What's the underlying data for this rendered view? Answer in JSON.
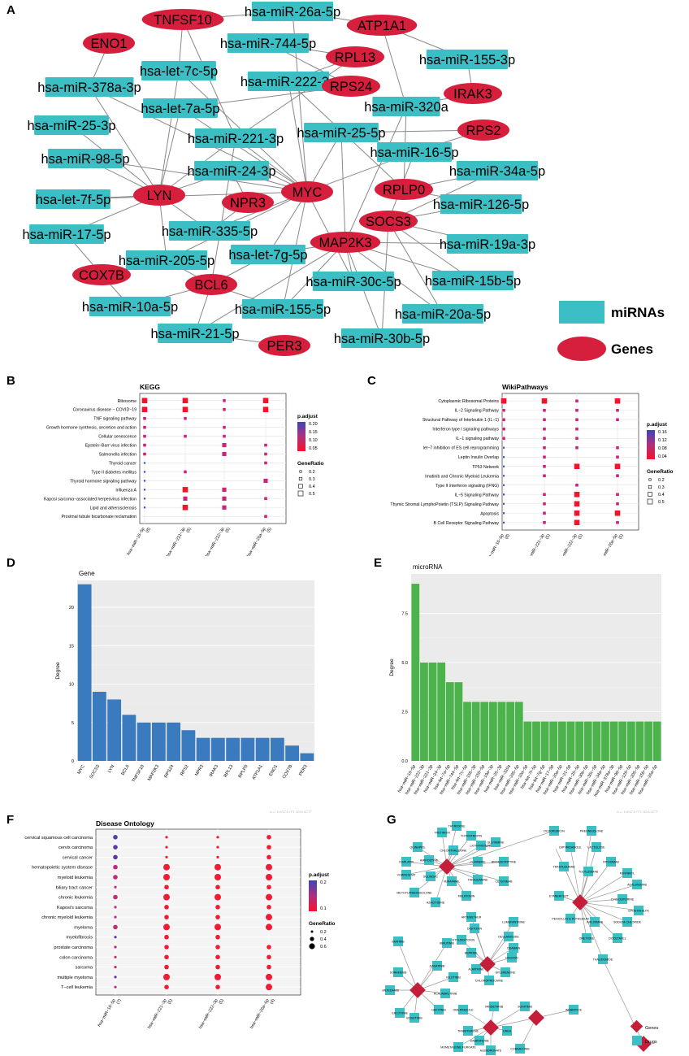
{
  "panels": {
    "A": "A",
    "B": "B",
    "C": "C",
    "D": "D",
    "E": "E",
    "F": "F",
    "G": "G"
  },
  "network_a": {
    "legend": {
      "mirnas": "miRNAs",
      "genes": "Genes"
    },
    "colors": {
      "mirna": "#3bbfc4",
      "gene": "#d61f3d",
      "edge": "#888888"
    },
    "mirnas": [
      "hsa-miR-26a-5p",
      "hsa-miR-744-5p",
      "hsa-let-7c-5p",
      "hsa-miR-222-3p",
      "hsa-miR-155-3p",
      "hsa-miR-378a-3p",
      "hsa-let-7a-5p",
      "hsa-miR-320a",
      "hsa-miR-25-3p",
      "hsa-miR-221-3p",
      "hsa-miR-25-5p",
      "hsa-miR-16-5p",
      "hsa-miR-98-5p",
      "hsa-miR-24-3p",
      "hsa-miR-34a-5p",
      "hsa-let-7f-5p",
      "hsa-miR-126-5p",
      "hsa-miR-17-5p",
      "hsa-miR-335-5p",
      "hsa-miR-205-5p",
      "hsa-let-7g-5p",
      "hsa-miR-19a-3p",
      "hsa-miR-30c-5p",
      "hsa-miR-15b-5p",
      "hsa-miR-10a-5p",
      "hsa-miR-155-5p",
      "hsa-miR-20a-5p",
      "hsa-miR-21-5p",
      "hsa-miR-30b-5p"
    ],
    "genes": [
      "TNFSF10",
      "ATP1A1",
      "ENO1",
      "RPL13",
      "RPS24",
      "IRAK3",
      "RPS2",
      "MYC",
      "LYN",
      "NPR3",
      "RPLP0",
      "SOCS3",
      "MAP2K3",
      "COX7B",
      "BCL6",
      "PER3"
    ]
  },
  "kegg": {
    "title": "KEGG",
    "terms": [
      "Ribosome",
      "Coronavirus disease − COVID−19",
      "TNF signaling pathway",
      "Growth hormone synthesis, secretion and action",
      "Cellular senescence",
      "Epstein−Barr virus infection",
      "Salmonella infection",
      "Thyroid cancer",
      "Type II diabetes mellitus",
      "Thyroid hormone signaling pathway",
      "Influenza A",
      "Kaposi sarcoma−associated herpesvirus infection",
      "Lipid and atherosclerosis",
      "Proximal tubule bicarbonate reclamation"
    ],
    "groups": [
      "hsa−miR−16−5p\n(8)",
      "hsa−miR−221−3p\n(5)",
      "hsa−miR−222−3p\n(5)",
      "hsa−miR−26a−5p\n(5)"
    ],
    "legend_color_title": "p.adjust",
    "legend_color_ticks": [
      "0.20",
      "0.15",
      "0.10",
      "0.05"
    ],
    "legend_size_title": "GeneRatio",
    "legend_size_ticks": [
      "0.2",
      "0.3",
      "0.4",
      "0.5"
    ]
  },
  "wiki": {
    "title": "WikiPathways",
    "terms": [
      "Cytoplasmic Ribosomal Proteins",
      "IL−2 Signaling Pathway",
      "Structural Pathway of Interleukin 1 (IL−1)",
      "Interferon type I signaling pathways",
      "IL−1 signaling pathway",
      "let−7 inhibition of ES cell reprogramming",
      "Leptin Insulin Overlap",
      "TP53 Network",
      "Imatinib and Chronic Myeloid Leukemia",
      "Type II interferon signaling (IFNG)",
      "IL−5 Signaling Pathway",
      "Thymic Stromal LymphoPoietin (TSLP) Signaling Pathway",
      "Apoptosis",
      "B Cell Receptor Signaling Pathway"
    ],
    "groups": [
      "hsa−miR−16−5p\n(8)",
      "hsa−miR−221−3p\n(5)",
      "hsa−miR−222−3p\n(5)",
      "hsa−miR−26a−5p\n(5)"
    ],
    "legend_color_title": "p.adjust",
    "legend_color_ticks": [
      "0.16",
      "0.12",
      "0.08",
      "0.04"
    ],
    "legend_size_title": "GeneRatio",
    "legend_size_ticks": [
      "0.2",
      "0.3",
      "0.4",
      "0.5"
    ]
  },
  "disease": {
    "title": "Disease Ontology",
    "terms": [
      "cervical squamous cell carcinoma",
      "cervix carcinoma",
      "cervical cancer",
      "hematopoietic system disease",
      "myeloid leukemia",
      "biliary tract cancer",
      "chronic leukemia",
      "Kaposi's sarcoma",
      "chronic myeloid leukemia",
      "myeloma",
      "myelofibrosis",
      "prostate carcinoma",
      "colon carcinoma",
      "sarcoma",
      "multiple myeloma",
      "T−cell leukemia"
    ],
    "groups": [
      "hsa−miR−16−5p\n(7)",
      "hsa−miR−221−3p\n(5)",
      "hsa−miR−222−3p\n(5)",
      "hsa−miR−26a−5p\n(4)"
    ],
    "legend_color_title": "p.adjust",
    "legend_color_ticks": [
      "0.2",
      "0.1"
    ],
    "legend_size_title": "GeneRatio",
    "legend_size_ticks": [
      "0.2",
      "0.4",
      "0.6"
    ]
  },
  "chart_data": [
    {
      "type": "bar",
      "title": "Gene",
      "xlabel": "",
      "ylabel": "Degree",
      "ylim": [
        0,
        23.5
      ],
      "yticks": [
        "0",
        "5",
        "10",
        "15",
        "20"
      ],
      "color": "#3a7bbf",
      "categories": [
        "MYC",
        "SOCS3",
        "LYN",
        "BCL6",
        "TNFSF10",
        "MAP2K3",
        "RPS24",
        "RPS2",
        "NPR3",
        "IRAK3",
        "RPL13",
        "RPLP0",
        "ATP1A1",
        "ENO1",
        "COX7B",
        "PER3"
      ],
      "values": [
        23,
        9,
        8,
        6,
        5,
        5,
        5,
        4,
        3,
        3,
        3,
        3,
        3,
        3,
        2,
        1
      ],
      "watermark": "by MIENTURNET"
    },
    {
      "type": "bar",
      "title": "microRNA",
      "xlabel": "",
      "ylabel": "Degree",
      "ylim": [
        0,
        9.5
      ],
      "yticks": [
        "0.0",
        "2.5",
        "5.0",
        "7.5"
      ],
      "color": "#4cb34c",
      "categories": [
        "hsa−miR−16−5p",
        "hsa−miR−222−3p",
        "hsa−miR−221−3p",
        "hsa−miR−24−3p",
        "hsa−let−7a−5p",
        "hsa−miR−744−5p",
        "hsa−let−7c−5p",
        "hsa−miR−155−3p",
        "hsa−miR−155−5p",
        "hsa−miR−19a−3p",
        "hsa−miR−25−3p",
        "hsa−miR−320a",
        "hsa−miR−335−5p",
        "hsa−miR−10a−5p",
        "hsa−let−7f−5p",
        "hsa−let−7g−5p",
        "hsa−miR−17−5p",
        "hsa−miR−20a−5p",
        "hsa−miR−21−5p",
        "hsa−miR−25−5p",
        "hsa−miR−30b−5p",
        "hsa−miR−30c−5p",
        "hsa−miR−34a−5p",
        "hsa−miR−378a−3p",
        "hsa−miR−98−5p",
        "hsa−miR−126−5p",
        "hsa−miR−205−5p",
        "hsa−miR−15b−5p",
        "hsa−miR−26a−5p"
      ],
      "values": [
        9,
        5,
        5,
        5,
        4,
        4,
        3,
        3,
        3,
        3,
        3,
        3,
        3,
        2,
        2,
        2,
        2,
        2,
        2,
        2,
        2,
        2,
        2,
        2,
        2,
        2,
        2,
        2,
        2
      ],
      "watermark": "by MIENTURNET"
    }
  ],
  "drugs_g": {
    "legend": {
      "genes": "Genes",
      "drugs": "Drugs"
    },
    "drugs": [
      "TRETINOIN",
      "THYROXINE",
      "THYROTROPIN",
      "QUINAPRIL",
      "CHLORTHALIDONE",
      "LIOTHYRONINE",
      "GLUTAMINE",
      "CISPLATIN",
      "AMIPOSTINE",
      "CLARIBINE",
      "BROMOCRIPTINE",
      "VORINOSTAT",
      "DOXORUBICIN",
      "SULINDAC",
      "VERAPAMIL",
      "THIOGUANINE",
      "CETUXIMAB",
      "METHYLPREDNISOLONE",
      "MELATONIN",
      "AZACITIDINE",
      "PREDNISOLONE",
      "DIPYRIDAMOLE",
      "LACTULOSE",
      "RITUXIMAB",
      "TRASTUZUMAB",
      "TOCILIZUMAB",
      "FENTANYL",
      "ADALIMUMAB",
      "ETANERCEPT",
      "CYCLOSPORINE",
      "EPOETIN ALFA",
      "PENICILLIN G POTASSIUM",
      "INFLIXIMAB",
      "SODIUM CHLORIDE",
      "ONETIONE",
      "DOCETAXEL",
      "THALIDOMIDE",
      "IMATINIB",
      "IBRUTINIB",
      "ARTEMETHER",
      "LUMEFANTRINE",
      "DIGITOXIN",
      "DESLANOSIDE",
      "ACETYLDIGITOXIN",
      "OUABAIN",
      "BEPRIDIL",
      "DIGOXIN",
      "ALMITRINE",
      "EPLERENONE",
      "CHLOROPROCAINE",
      "SORAFENIB",
      "DASATINIB",
      "NILOTINIB",
      "NINTEDANIB",
      "ACALABRUTINIB",
      "ERLOTINIB",
      "GEFITINIB",
      "BOSUTINIB",
      "OMEPRAZOLE",
      "VANDETANIB",
      "SUNITINIB",
      "INEBRITICE",
      "TRIAMTERENE",
      "UREA",
      "DABRAFENIB",
      "MOMETASONE FUROATE",
      "ALENDRONATE",
      "COBIMETINIB"
    ]
  }
}
